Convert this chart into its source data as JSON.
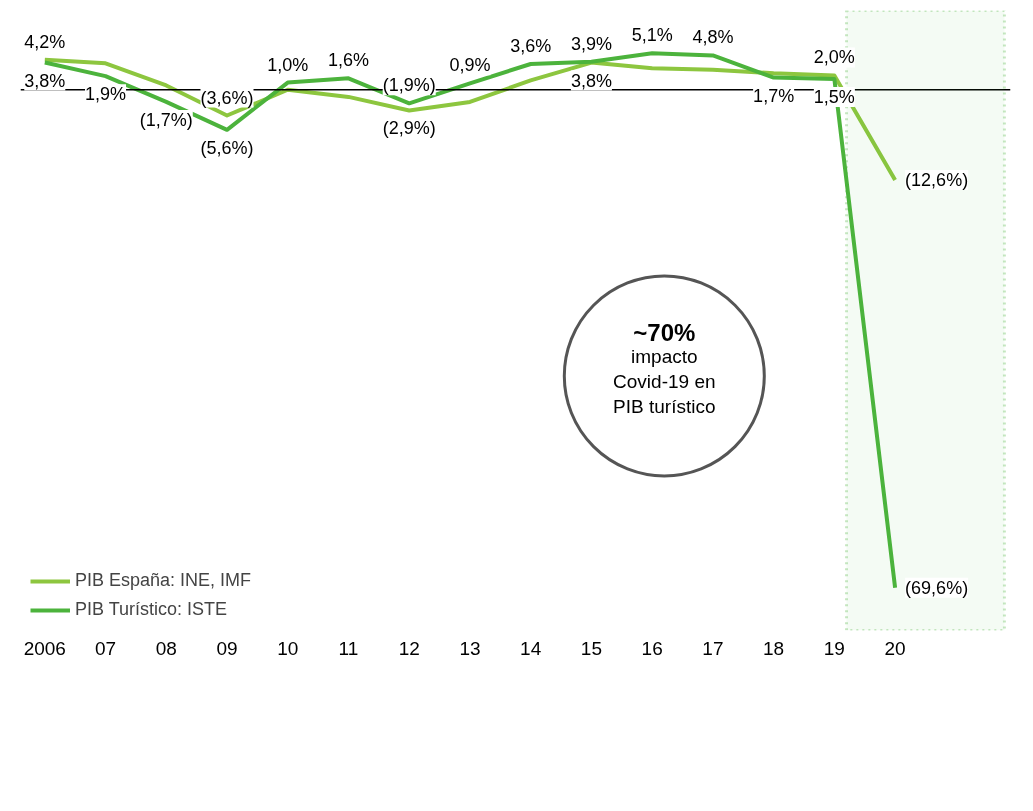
{
  "chart_data": {
    "type": "line",
    "x": [
      2006,
      2007,
      2008,
      2009,
      2010,
      2011,
      2012,
      2013,
      2014,
      2015,
      2016,
      2017,
      2018,
      2019,
      2020
    ],
    "xlim": [
      2005.6,
      2021.9
    ],
    "xticks": [
      2006,
      {
        "value": 2007,
        "label": "07"
      },
      {
        "value": 2008,
        "label": "08"
      },
      {
        "value": 2009,
        "label": "09"
      },
      {
        "value": 2010,
        "label": "10"
      },
      {
        "value": 2011,
        "label": "11"
      },
      {
        "value": 2012,
        "label": "12"
      },
      {
        "value": 2013,
        "label": "13"
      },
      {
        "value": 2014,
        "label": "14"
      },
      {
        "value": 2015,
        "label": "15"
      },
      {
        "value": 2016,
        "label": "16"
      },
      {
        "value": 2017,
        "label": "17"
      },
      {
        "value": 2018,
        "label": "18"
      },
      {
        "value": 2019,
        "label": "19"
      },
      {
        "value": 2020,
        "label": "20"
      }
    ],
    "tick_labels": "x",
    "legend": "bottom left",
    "series": [
      {
        "name": "PIB España: INE, IMF",
        "color": "#8dc63f",
        "values": [
          4.2,
          3.7,
          0.6,
          -3.6,
          0.0,
          -1.0,
          -2.9,
          -1.7,
          1.3,
          3.8,
          3.0,
          2.8,
          2.3,
          2.0,
          -12.6
        ],
        "value_labels": [
          "4,2%",
          null,
          null,
          "(3,6%)",
          null,
          null,
          "(2,9%)",
          null,
          null,
          "3,8%",
          null,
          null,
          null,
          "2,0%",
          "(12,6%)"
        ]
      },
      {
        "name": "PIB Turístico: ISTE",
        "color": "#4cb33c",
        "values": [
          3.8,
          1.9,
          -1.7,
          -5.6,
          1.0,
          1.6,
          -1.9,
          0.9,
          3.6,
          3.9,
          5.1,
          4.8,
          1.7,
          1.5,
          -69.6
        ],
        "value_labels": [
          "3,8%",
          "1,9%",
          "(1,7%)",
          "(5,6%)",
          "1,0%",
          "1,6%",
          "(1,9%)",
          "0,9%",
          "3,6%",
          "3,9%",
          "5,1%",
          "4,8%",
          "1,7%",
          "1,5%",
          "(69,6%)"
        ]
      }
    ],
    "ref_lines": [
      {
        "axis": "y",
        "value": 0,
        "color": "#000000"
      }
    ],
    "bands": [
      {
        "axis": "x",
        "from": 2019.2,
        "to": 2021.8,
        "color": "#4cb33c"
      }
    ],
    "annotations": [
      "~70%",
      "impacto\nCovid-19 en\nPIB turístico"
    ]
  }
}
